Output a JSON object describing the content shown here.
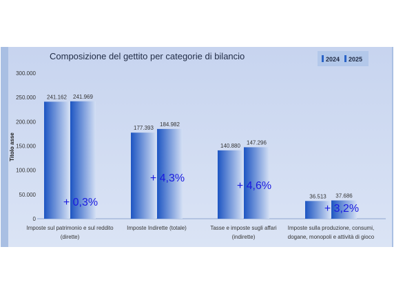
{
  "chart_data": {
    "type": "bar",
    "title": "Composizione del gettito per categorie di bilancio",
    "ylabel": "Titolo asse",
    "xlabel": "",
    "ylim": [
      0,
      300000
    ],
    "yticks": [
      "0",
      "50.000",
      "100.000",
      "150.000",
      "200.000",
      "250.000",
      "300.000"
    ],
    "ytick_values": [
      0,
      50000,
      100000,
      150000,
      200000,
      250000,
      300000
    ],
    "grid": false,
    "legend_position": "top-right",
    "categories": [
      [
        "Imposte sul patrimonio e sul  reddito",
        "(dirette)"
      ],
      [
        "Imposte Indirette (totale)"
      ],
      [
        "Tasse e imposte sugli affari",
        "(indirette)"
      ],
      [
        "Imposte sulla produzione, consumi,",
        "dogane, monopoli e attività di gioco"
      ]
    ],
    "series": [
      {
        "name": "2024",
        "values": [
          241162,
          177393,
          140880,
          36513
        ],
        "labels": [
          "241.162",
          "177.393",
          "140.880",
          "36.513"
        ]
      },
      {
        "name": "2025",
        "values": [
          241969,
          184982,
          147296,
          37686
        ],
        "labels": [
          "241.969",
          "184.982",
          "147.296",
          "37.686"
        ]
      }
    ],
    "annotations": [
      "+ 0,3%",
      "+ 4,3%",
      "+ 4,6%",
      "+ 3,2%"
    ],
    "colors": {
      "panel_bg": "#cdd9f0",
      "frame": "#a9bfe3",
      "bar_dark": "#2a63c7",
      "bar_light": "#cfdcf3",
      "annotation": "#1a1adf",
      "legend_bg": "#b3c8ea"
    }
  }
}
